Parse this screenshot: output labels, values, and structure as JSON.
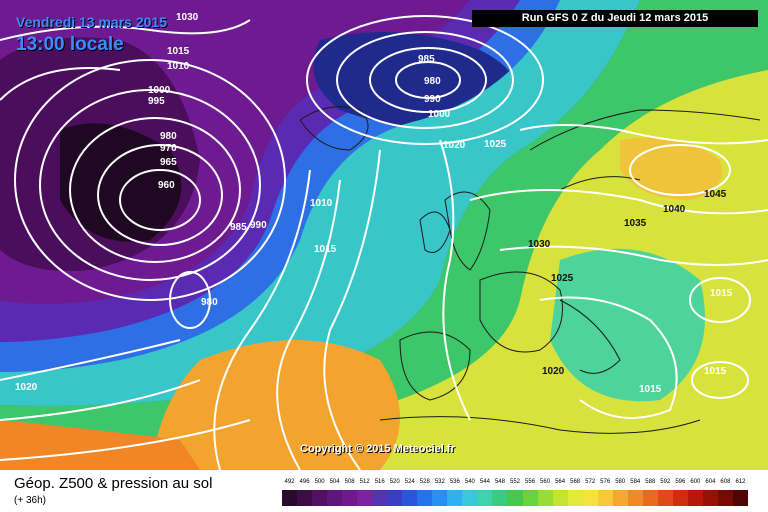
{
  "header": {
    "date_line": "Vendredi 13 mars 2015",
    "time_line": "13:00 locale",
    "run_info": "Run GFS 0 Z du Jeudi 12 mars 2015"
  },
  "copyright": "Copyright © 2015 Meteociel.fr",
  "legend": {
    "title": "Géop. Z500 & pression au sol",
    "forecast_hour": "(+ 36h)",
    "scale_values": [
      "492",
      "496",
      "500",
      "504",
      "508",
      "512",
      "516",
      "520",
      "524",
      "528",
      "532",
      "536",
      "540",
      "544",
      "548",
      "552",
      "556",
      "560",
      "564",
      "568",
      "572",
      "576",
      "580",
      "584",
      "588",
      "592",
      "596",
      "600",
      "604",
      "608",
      "612"
    ],
    "scale_colors": [
      "#2a0a2a",
      "#3c0c44",
      "#4f1160",
      "#5f157a",
      "#6e1a8e",
      "#7a22a0",
      "#5532b0",
      "#3a3ec6",
      "#2a55dc",
      "#2473ee",
      "#2790f4",
      "#2fb0f0",
      "#38c8dc",
      "#3cd4b0",
      "#38cc80",
      "#44c850",
      "#6ad23c",
      "#98dc34",
      "#c4e432",
      "#e4ea3a",
      "#f4e23e",
      "#f6c83a",
      "#f4a830",
      "#f08a26",
      "#ea6a1e",
      "#e04a16",
      "#d02c10",
      "#b8180c",
      "#981008",
      "#780a06",
      "#500404"
    ]
  },
  "isobar_labels": [
    "1030",
    "1015",
    "1010",
    "1000",
    "995",
    "985",
    "980",
    "990",
    "1000",
    "980",
    "970",
    "965",
    "960",
    "985",
    "990",
    "1020",
    "1025",
    "1010",
    "1015",
    "980",
    "1045",
    "1040",
    "1035",
    "1030",
    "1025",
    "1015",
    "1020",
    "1015",
    "1015",
    "1020"
  ],
  "colors": {
    "isobar": "#ffffff",
    "title_text": "#3a8cff",
    "run_box_bg": "#000000"
  }
}
